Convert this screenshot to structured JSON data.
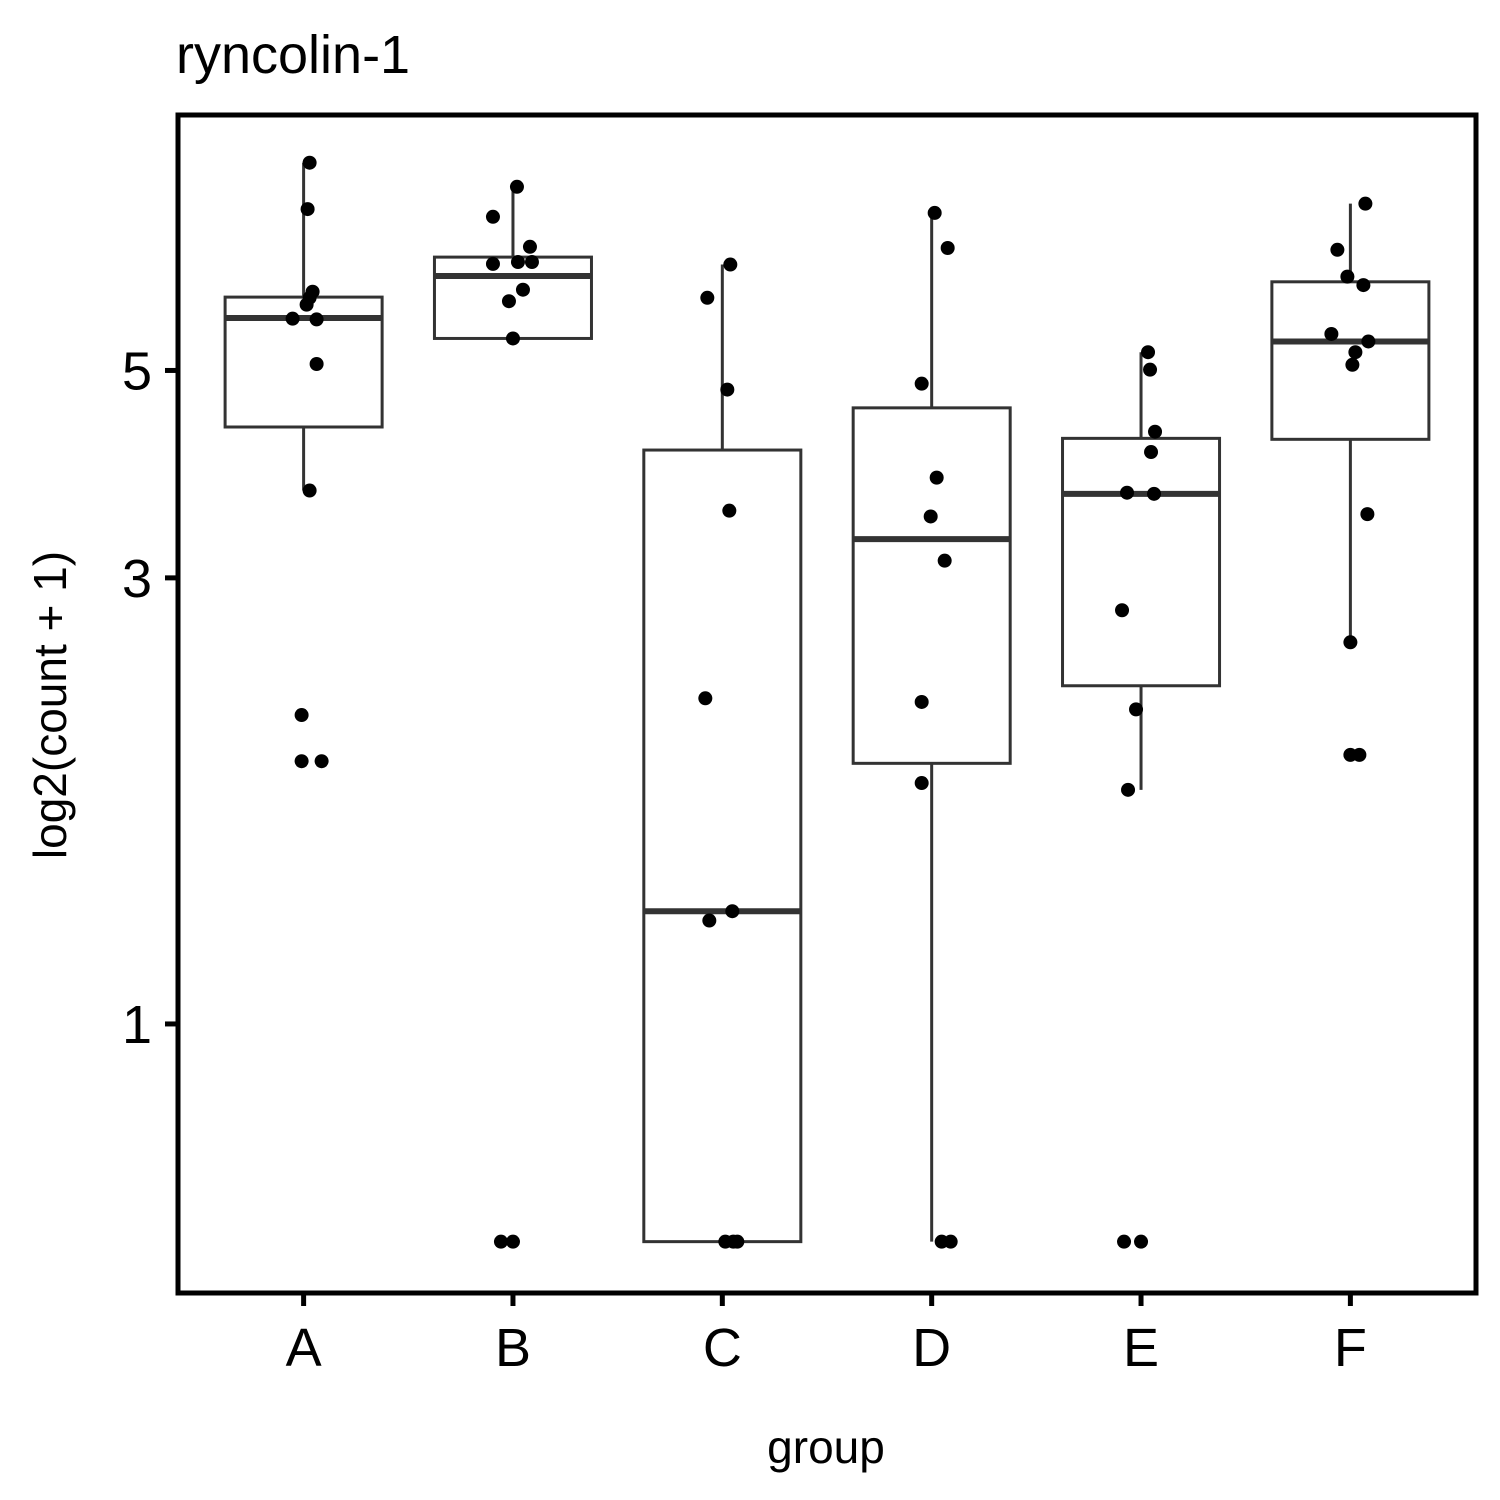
{
  "chart_data": {
    "type": "boxplot",
    "title": "ryncolin-1",
    "xlabel": "group",
    "ylabel": "log2(count + 1)",
    "y_scale": "log",
    "ylim": [
      0.5155,
      9.38
    ],
    "y_ticks": [
      1,
      3,
      5
    ],
    "grid": false,
    "legend": "none",
    "categories": [
      "A",
      "B",
      "C",
      "D",
      "E",
      "F"
    ],
    "groups": [
      {
        "group": "A",
        "box": {
          "whisker_low": 3.72,
          "q1": 4.35,
          "median": 5.69,
          "q3": 5.99,
          "whisker_high": 8.34
        },
        "points": [
          8.34,
          7.44,
          6.07,
          5.98,
          5.88,
          5.68,
          5.67,
          5.08,
          3.72,
          2.14,
          1.91,
          1.91
        ]
      },
      {
        "group": "B",
        "box": {
          "whisker_low": 5.41,
          "q1": 5.41,
          "median": 6.31,
          "q3": 6.61,
          "whisker_high": 7.86
        },
        "points": [
          7.86,
          7.3,
          6.78,
          6.5,
          6.53,
          6.53,
          6.1,
          5.93,
          5.41,
          0.585,
          0.585
        ]
      },
      {
        "group": "C",
        "box": {
          "whisker_low": 0.585,
          "q1": 0.585,
          "median": 1.32,
          "q3": 4.11,
          "whisker_high": 6.49
        },
        "points": [
          6.49,
          5.98,
          4.77,
          3.54,
          2.23,
          1.32,
          1.29,
          0.585,
          0.585,
          0.585
        ]
      },
      {
        "group": "D",
        "box": {
          "whisker_low": 0.585,
          "q1": 1.9,
          "median": 3.3,
          "q3": 4.56,
          "whisker_high": 7.37
        },
        "points": [
          7.37,
          6.76,
          4.84,
          3.84,
          3.49,
          3.13,
          2.21,
          1.81,
          0.585,
          0.585
        ]
      },
      {
        "group": "E",
        "box": {
          "whisker_low": 1.78,
          "q1": 2.3,
          "median": 3.69,
          "q3": 4.23,
          "whisker_high": 5.23
        },
        "points": [
          5.23,
          5.01,
          4.3,
          4.09,
          3.7,
          3.69,
          2.77,
          2.17,
          1.78,
          0.585,
          0.585
        ]
      },
      {
        "group": "F",
        "box": {
          "whisker_low": 2.56,
          "q1": 4.22,
          "median": 5.37,
          "q3": 6.22,
          "whisker_high": 7.54
        },
        "points": [
          7.54,
          6.73,
          6.3,
          6.17,
          5.47,
          5.37,
          5.23,
          5.07,
          3.51,
          2.56,
          1.94,
          1.94
        ]
      }
    ]
  }
}
